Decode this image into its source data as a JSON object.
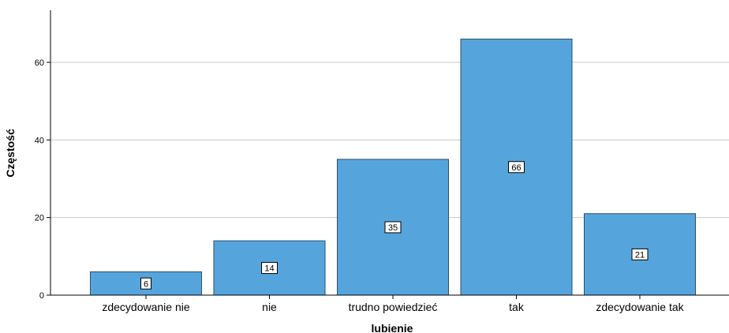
{
  "chart_data": {
    "type": "bar",
    "title": "",
    "xlabel": "lubienie",
    "ylabel": "Częstość",
    "categories": [
      "zdecydowanie nie",
      "nie",
      "trudno powiedzieć",
      "tak",
      "zdecydowanie tak"
    ],
    "values": [
      6,
      14,
      35,
      66,
      21
    ],
    "ylim": [
      0,
      73
    ],
    "yticks": [
      0,
      20,
      40,
      60
    ],
    "grid": true,
    "data_labels": true,
    "bar_color": "#55a5dc",
    "bar_edge_color": "#2b4f6a"
  }
}
